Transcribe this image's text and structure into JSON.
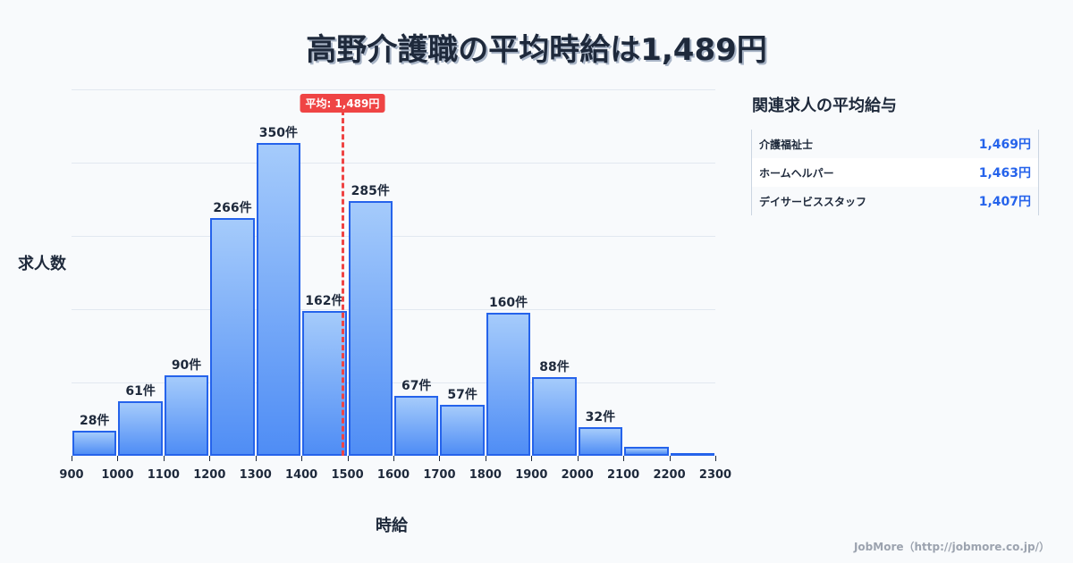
{
  "title": "高野介護職の平均時給は1,489円",
  "axis": {
    "ylabel": "求人数",
    "xlabel": "時給"
  },
  "mean": {
    "label": "平均: 1,489円",
    "value": 1489
  },
  "sidebar": {
    "title": "関連求人の平均給与",
    "rows": [
      {
        "name": "介護福祉士",
        "value": "1,469円"
      },
      {
        "name": "ホームヘルパー",
        "value": "1,463円"
      },
      {
        "name": "デイサービススタッフ",
        "value": "1,407円"
      }
    ]
  },
  "footer": "JobMore（http://jobmore.co.jp/）",
  "chart_data": {
    "type": "bar",
    "title": "高野介護職の平均時給は1,489円",
    "xlabel": "時給",
    "ylabel": "求人数",
    "bin_edges": [
      900,
      1000,
      1100,
      1200,
      1300,
      1400,
      1500,
      1600,
      1700,
      1800,
      1900,
      2000,
      2100,
      2200,
      2300
    ],
    "categories": [
      "900-1000",
      "1000-1100",
      "1100-1200",
      "1200-1300",
      "1300-1400",
      "1400-1500",
      "1500-1600",
      "1600-1700",
      "1700-1800",
      "1800-1900",
      "1900-2000",
      "2000-2100",
      "2100-2200",
      "2200-2300"
    ],
    "values": [
      28,
      61,
      90,
      266,
      350,
      162,
      285,
      67,
      57,
      160,
      88,
      32,
      10,
      3
    ],
    "labels": [
      "28件",
      "61件",
      "90件",
      "266件",
      "350件",
      "162件",
      "285件",
      "67件",
      "57件",
      "160件",
      "88件",
      "32件",
      "",
      ""
    ],
    "x_ticks": [
      "900",
      "1000",
      "1100",
      "1200",
      "1300",
      "1400",
      "1500",
      "1600",
      "1700",
      "1800",
      "1900",
      "2000",
      "2100",
      "2200",
      "2300"
    ],
    "mean_line": {
      "value": 1489,
      "label": "平均: 1,489円",
      "color": "#ef4444"
    },
    "ylim": [
      0,
      410
    ],
    "grid": true,
    "bar_color": "#2563eb"
  }
}
